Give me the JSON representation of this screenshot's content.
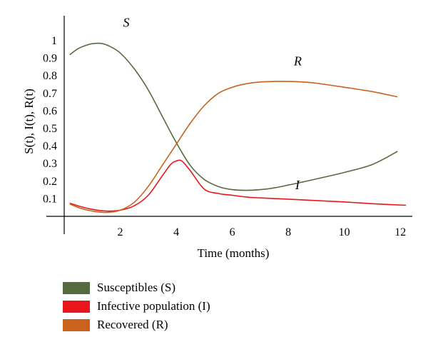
{
  "chart_data": {
    "type": "line",
    "xlabel": "Time (months)",
    "ylabel": "S(t), I(t), R(t)",
    "xlim": [
      0,
      12.3
    ],
    "ylim": [
      0,
      1.05
    ],
    "xticks": [
      2,
      4,
      6,
      8,
      10,
      12
    ],
    "yticks": [
      0.1,
      0.2,
      0.3,
      0.4,
      0.5,
      0.6,
      0.7,
      0.8,
      0.9,
      1
    ],
    "grid": false,
    "legend_position": "bottom",
    "series": [
      {
        "key": "S",
        "name": "Susceptibles (S)",
        "color": "#556B3F",
        "points": [
          [
            0.2,
            0.92
          ],
          [
            0.5,
            0.955
          ],
          [
            0.8,
            0.975
          ],
          [
            1.0,
            0.983
          ],
          [
            1.3,
            0.985
          ],
          [
            1.6,
            0.97
          ],
          [
            2.0,
            0.93
          ],
          [
            2.5,
            0.84
          ],
          [
            3.0,
            0.72
          ],
          [
            3.5,
            0.57
          ],
          [
            4.0,
            0.42
          ],
          [
            4.5,
            0.29
          ],
          [
            5.0,
            0.21
          ],
          [
            5.5,
            0.17
          ],
          [
            6.0,
            0.152
          ],
          [
            6.5,
            0.148
          ],
          [
            7.0,
            0.152
          ],
          [
            7.5,
            0.162
          ],
          [
            8.0,
            0.178
          ],
          [
            8.5,
            0.195
          ],
          [
            9.0,
            0.213
          ],
          [
            10.0,
            0.25
          ],
          [
            11.0,
            0.295
          ],
          [
            11.9,
            0.37
          ]
        ]
      },
      {
        "key": "I",
        "name": "Infective population (I)",
        "color": "#E8161A",
        "points": [
          [
            0.2,
            0.075
          ],
          [
            0.6,
            0.055
          ],
          [
            1.0,
            0.04
          ],
          [
            1.5,
            0.03
          ],
          [
            2.0,
            0.035
          ],
          [
            2.5,
            0.06
          ],
          [
            3.0,
            0.12
          ],
          [
            3.5,
            0.23
          ],
          [
            3.8,
            0.295
          ],
          [
            4.0,
            0.315
          ],
          [
            4.2,
            0.315
          ],
          [
            4.5,
            0.26
          ],
          [
            5.0,
            0.155
          ],
          [
            5.5,
            0.13
          ],
          [
            6.0,
            0.12
          ],
          [
            6.5,
            0.11
          ],
          [
            7.0,
            0.105
          ],
          [
            8.0,
            0.098
          ],
          [
            9.0,
            0.09
          ],
          [
            10.0,
            0.082
          ],
          [
            11.0,
            0.072
          ],
          [
            12.2,
            0.063
          ]
        ]
      },
      {
        "key": "R",
        "name": "Recovered (R)",
        "color": "#C8621C",
        "points": [
          [
            0.2,
            0.07
          ],
          [
            0.6,
            0.045
          ],
          [
            1.0,
            0.03
          ],
          [
            1.5,
            0.022
          ],
          [
            2.0,
            0.035
          ],
          [
            2.5,
            0.08
          ],
          [
            3.0,
            0.17
          ],
          [
            3.5,
            0.29
          ],
          [
            4.0,
            0.41
          ],
          [
            4.5,
            0.53
          ],
          [
            5.0,
            0.63
          ],
          [
            5.5,
            0.7
          ],
          [
            6.0,
            0.735
          ],
          [
            6.5,
            0.755
          ],
          [
            7.0,
            0.765
          ],
          [
            7.5,
            0.768
          ],
          [
            8.0,
            0.768
          ],
          [
            8.5,
            0.765
          ],
          [
            9.0,
            0.758
          ],
          [
            10.0,
            0.735
          ],
          [
            11.0,
            0.71
          ],
          [
            11.9,
            0.68
          ]
        ]
      }
    ],
    "annotations": [
      {
        "text": "S",
        "x": 2.1,
        "y": 1.08
      },
      {
        "text": "R",
        "x": 8.2,
        "y": 0.86
      },
      {
        "text": "I",
        "x": 8.25,
        "y": 0.155
      }
    ]
  }
}
